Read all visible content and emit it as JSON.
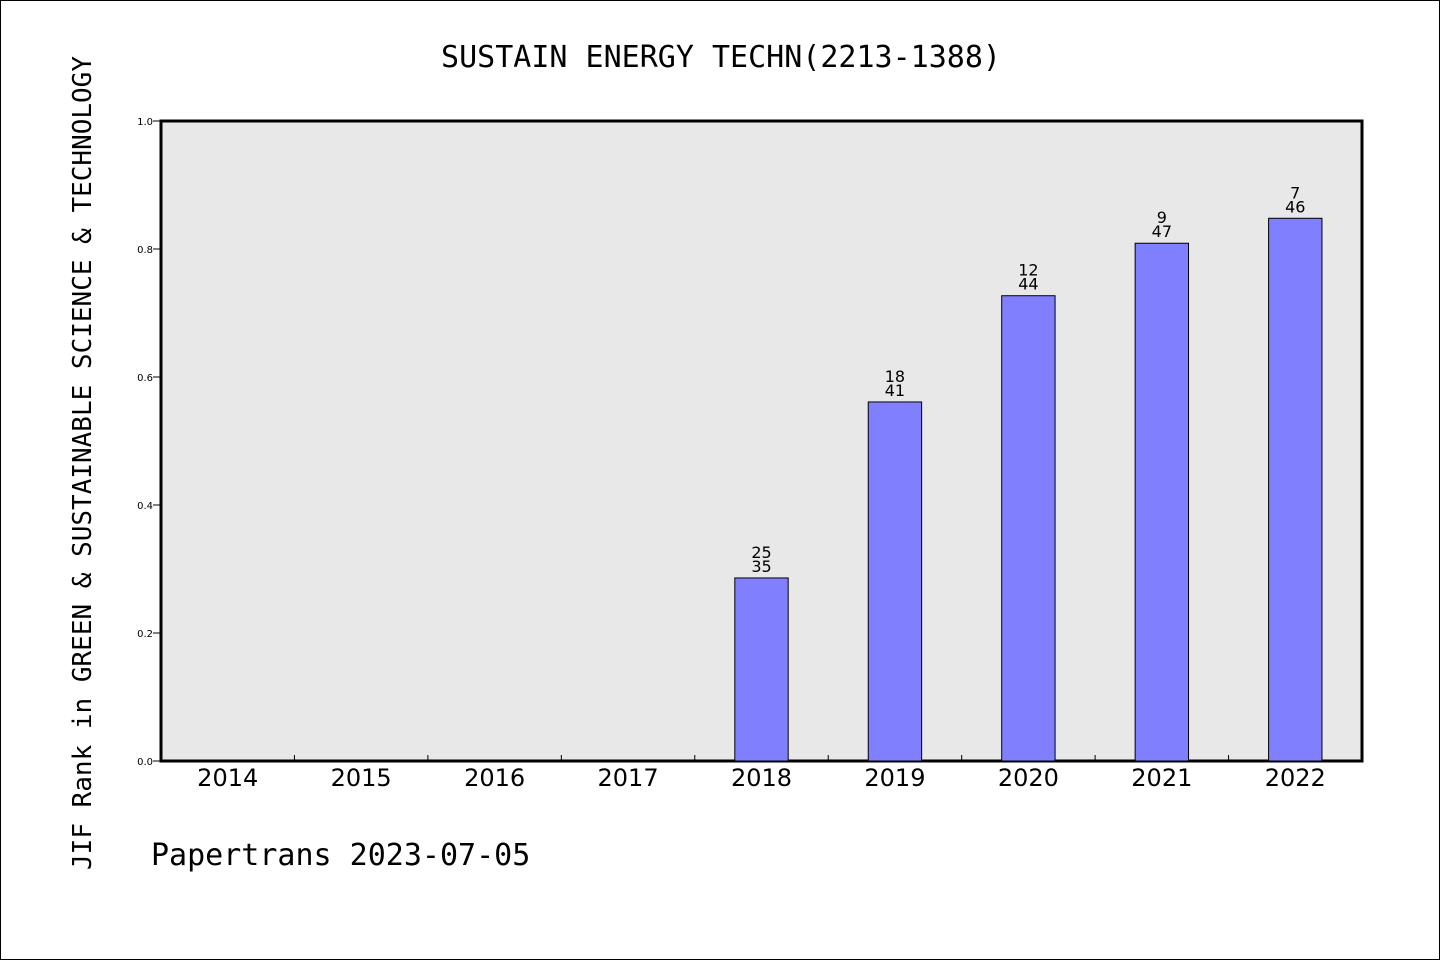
{
  "chart_data": {
    "type": "bar",
    "title": "SUSTAIN ENERGY TECHN(2213-1388)",
    "xlabel": "",
    "ylabel": "JIF Rank in GREEN & SUSTAINABLE SCIENCE & TECHNOLOGY",
    "ylim": [
      0,
      1.0
    ],
    "yticks": [
      "0.0",
      "0.2",
      "0.4",
      "0.6",
      "0.8",
      "1.0"
    ],
    "categories": [
      "2014",
      "2015",
      "2016",
      "2017",
      "2018",
      "2019",
      "2020",
      "2021",
      "2022"
    ],
    "values": [
      null,
      null,
      null,
      null,
      0.286,
      0.561,
      0.727,
      0.809,
      0.848
    ],
    "rank": [
      null,
      null,
      null,
      null,
      "25",
      "18",
      "12",
      "9",
      "7"
    ],
    "total": [
      null,
      null,
      null,
      null,
      "35",
      "41",
      "44",
      "47",
      "46"
    ],
    "grid": false,
    "legend": "none",
    "colors": {
      "bar": "#8080ff",
      "plot_bg": "#e8e8e8",
      "axis": "#000000"
    }
  },
  "footer": {
    "text": "Papertrans 2023-07-05"
  }
}
